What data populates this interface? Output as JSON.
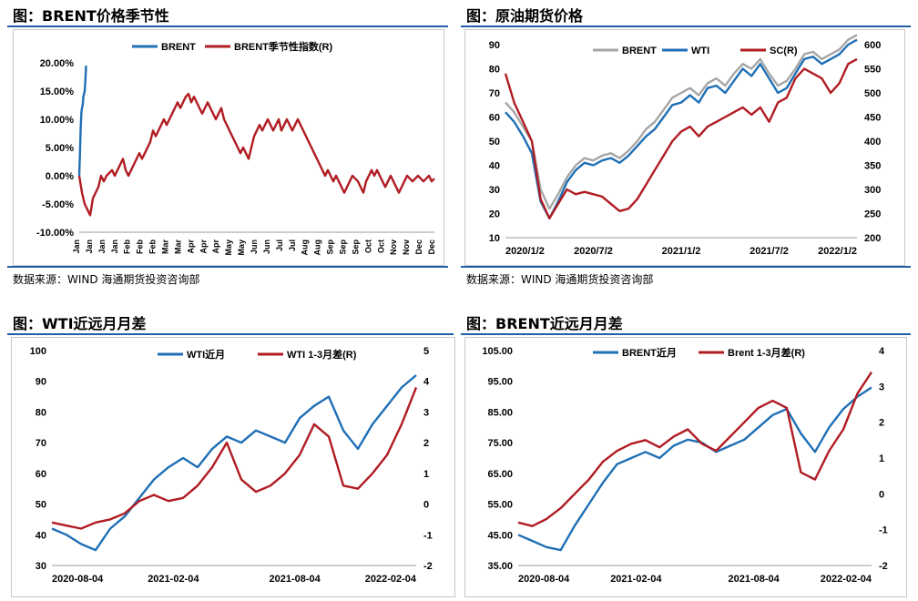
{
  "panels": [
    {
      "title": "图：BRENT价格季节性",
      "source": "数据来源：WIND   海通期货投资咨询部"
    },
    {
      "title": "图：原油期货价格",
      "source": "数据来源：WIND   海通期货投资咨询部"
    },
    {
      "title": "图：WTI近远月月差",
      "source": ""
    },
    {
      "title": "图：BRENT近远月月差",
      "source": ""
    }
  ],
  "colors": {
    "blue": "#1f6fb5",
    "red": "#b01c22",
    "gray": "#a6a6a6",
    "rule": "#1f5fa6"
  },
  "chart_data": [
    {
      "type": "line",
      "title": "",
      "x_tick_labels": [
        "Jan",
        "Jan",
        "Jan",
        "Jan",
        "Feb",
        "Feb",
        "Feb",
        "Mar",
        "Mar",
        "Apr",
        "Apr",
        "Apr",
        "May",
        "May",
        "Jun",
        "Jun",
        "Jul",
        "Jul",
        "Aug",
        "Aug",
        "Sep",
        "Sep",
        "Sep",
        "Oct",
        "Oct",
        "Nov",
        "Nov",
        "Dec",
        "Dec"
      ],
      "y_tick_labels": [
        "20.00%",
        "15.00%",
        "10.00%",
        "5.00%",
        "0.00%",
        "-5.00%",
        "-10.00%"
      ],
      "ylim": [
        -10,
        20
      ],
      "legend_position": "top",
      "series": [
        {
          "name": "BRENT",
          "color": "#1f6fb5",
          "x": [
            0,
            0.5,
            1,
            1.5,
            2,
            2.5,
            3,
            3.5,
            4,
            4.5,
            5
          ],
          "y": [
            0,
            4,
            8,
            11,
            12,
            12.5,
            14,
            14.5,
            15,
            17,
            19.5
          ]
        },
        {
          "name": "BRENT季节性指数(R)",
          "color": "#b01c22",
          "x": [
            0,
            2,
            4,
            6,
            8,
            10,
            12,
            14,
            16,
            18,
            20,
            22,
            24,
            26,
            28,
            30,
            32,
            34,
            36,
            38,
            40,
            42,
            44,
            46,
            48,
            50,
            52,
            54,
            56,
            58,
            60,
            62,
            64,
            66,
            68,
            70,
            72,
            74,
            76,
            78,
            80,
            82,
            84,
            86,
            88,
            90,
            92,
            94,
            96,
            98,
            100,
            102,
            104,
            106,
            108,
            110,
            112,
            114,
            116,
            118,
            120,
            122,
            124,
            126,
            128,
            130,
            132,
            134,
            136,
            138,
            140,
            142,
            144,
            146,
            148,
            150,
            152,
            154,
            156,
            158,
            160,
            162,
            164,
            166,
            168,
            170,
            172,
            174,
            176,
            178,
            180,
            182,
            184,
            186,
            188,
            190,
            192,
            194,
            196,
            198,
            200,
            202,
            204,
            206,
            208,
            210,
            212,
            214,
            216,
            218,
            220,
            222,
            224,
            226,
            228,
            230,
            232,
            234,
            236,
            238,
            240,
            242,
            244,
            246,
            248,
            250,
            252,
            254,
            256,
            258,
            260
          ],
          "y": [
            0,
            -3,
            -5,
            -6,
            -7,
            -4,
            -3,
            -2,
            0,
            -1,
            0,
            0.5,
            1,
            0,
            1,
            2,
            3,
            1,
            0,
            1,
            2,
            3,
            4,
            3,
            4,
            5,
            6,
            8,
            7,
            8,
            9,
            10,
            9,
            10,
            11,
            12,
            13,
            12,
            13,
            14,
            14.5,
            13,
            14,
            13,
            12,
            11,
            12,
            13,
            12,
            11,
            10,
            11,
            12,
            10,
            9,
            8,
            7,
            6,
            5,
            4,
            5,
            4,
            3,
            5,
            7,
            8,
            9,
            8,
            9,
            10,
            9,
            8,
            9,
            10,
            8,
            9,
            10,
            9,
            8,
            9,
            10,
            9,
            8,
            7,
            6,
            5,
            4,
            3,
            2,
            1,
            0,
            1,
            0,
            -1,
            0,
            -1,
            -2,
            -3,
            -2,
            -1,
            0,
            -0.5,
            -1,
            -2,
            -3,
            -1,
            0,
            1,
            0,
            1,
            0,
            -1,
            -2,
            -1,
            0,
            -1,
            -2,
            -3,
            -2,
            -1,
            0,
            -0.5,
            -1,
            -0.5,
            0,
            -0.5,
            -1,
            -0.5,
            0,
            -1,
            -0.5
          ]
        }
      ]
    },
    {
      "type": "line",
      "title": "",
      "x_tick_labels": [
        "2020/1/2",
        "2020/7/2",
        "2021/1/2",
        "2021/7/2",
        "2022/1/2"
      ],
      "y_tick_labels_left": [
        "90",
        "80",
        "70",
        "60",
        "50",
        "40",
        "30",
        "20",
        "10"
      ],
      "y_tick_labels_right": [
        "600",
        "550",
        "500",
        "450",
        "400",
        "350",
        "300",
        "250",
        "200"
      ],
      "ylim": [
        10,
        90
      ],
      "ylim_right": [
        200,
        600
      ],
      "legend_position": "top",
      "series": [
        {
          "name": "BRENT",
          "color": "#a6a6a6",
          "x": [
            0,
            3,
            6,
            9,
            12,
            15,
            18,
            21,
            24,
            27,
            30,
            33,
            36,
            39,
            42,
            45,
            48,
            51,
            54,
            57,
            60,
            63,
            66,
            69,
            72,
            75,
            78,
            81,
            84,
            87,
            90,
            93,
            96,
            99,
            102,
            105,
            108,
            111,
            114,
            117,
            120
          ],
          "y": [
            66,
            62,
            56,
            50,
            30,
            22,
            28,
            35,
            40,
            43,
            42,
            44,
            45,
            43,
            46,
            50,
            55,
            58,
            63,
            68,
            70,
            72,
            69,
            74,
            76,
            73,
            78,
            82,
            80,
            84,
            78,
            73,
            75,
            80,
            86,
            87,
            84,
            86,
            88,
            92,
            94
          ]
        },
        {
          "name": "WTI",
          "color": "#1f6fb5",
          "x": [
            0,
            3,
            6,
            9,
            12,
            15,
            18,
            21,
            24,
            27,
            30,
            33,
            36,
            39,
            42,
            45,
            48,
            51,
            54,
            57,
            60,
            63,
            66,
            69,
            72,
            75,
            78,
            81,
            84,
            87,
            90,
            93,
            96,
            99,
            102,
            105,
            108,
            111,
            114,
            117,
            120
          ],
          "y": [
            62,
            58,
            52,
            45,
            25,
            18,
            25,
            33,
            38,
            41,
            40,
            42,
            43,
            41,
            44,
            48,
            52,
            55,
            60,
            65,
            66,
            69,
            66,
            72,
            73,
            70,
            75,
            80,
            77,
            82,
            76,
            70,
            72,
            78,
            84,
            85,
            82,
            84,
            86,
            90,
            92
          ]
        },
        {
          "name": "SC(R)",
          "color": "#b01c22",
          "x": [
            0,
            3,
            6,
            9,
            12,
            15,
            18,
            21,
            24,
            27,
            30,
            33,
            36,
            39,
            42,
            45,
            48,
            51,
            54,
            57,
            60,
            63,
            66,
            69,
            72,
            75,
            78,
            81,
            84,
            87,
            90,
            93,
            96,
            99,
            102,
            105,
            108,
            111,
            114,
            117,
            120
          ],
          "y": [
            540,
            480,
            440,
            400,
            280,
            240,
            270,
            300,
            290,
            295,
            290,
            285,
            270,
            255,
            260,
            280,
            310,
            340,
            370,
            400,
            420,
            430,
            410,
            430,
            440,
            450,
            460,
            470,
            455,
            470,
            440,
            480,
            490,
            530,
            550,
            540,
            530,
            500,
            520,
            560,
            570
          ]
        }
      ]
    },
    {
      "type": "line",
      "title": "",
      "x_tick_labels": [
        "2020-08-04",
        "2021-02-04",
        "2021-08-04",
        "2022-02-04"
      ],
      "y_tick_labels_left": [
        "100",
        "90",
        "80",
        "70",
        "60",
        "50",
        "40",
        "30"
      ],
      "y_tick_labels_right": [
        "5",
        "4",
        "3",
        "2",
        "1",
        "0",
        "-1",
        "-2"
      ],
      "ylim": [
        30,
        100
      ],
      "ylim_right": [
        -2,
        5
      ],
      "legend_position": "top",
      "series": [
        {
          "name": "WTI近月",
          "color": "#1f6fb5",
          "x": [
            0,
            4,
            8,
            12,
            16,
            20,
            24,
            28,
            32,
            36,
            40,
            44,
            48,
            52,
            56,
            60,
            64,
            68,
            72,
            76,
            80,
            84,
            88,
            92,
            96,
            100
          ],
          "y": [
            42,
            40,
            37,
            35,
            42,
            46,
            52,
            58,
            62,
            65,
            62,
            68,
            72,
            70,
            74,
            72,
            70,
            78,
            82,
            85,
            74,
            68,
            76,
            82,
            88,
            92
          ]
        },
        {
          "name": "WTI 1-3月差(R)",
          "color": "#b01c22",
          "x": [
            0,
            4,
            8,
            12,
            16,
            20,
            24,
            28,
            32,
            36,
            40,
            44,
            48,
            52,
            56,
            60,
            64,
            68,
            72,
            76,
            80,
            84,
            88,
            92,
            96,
            100
          ],
          "y": [
            -0.6,
            -0.7,
            -0.8,
            -0.6,
            -0.5,
            -0.3,
            0.1,
            0.3,
            0.1,
            0.2,
            0.6,
            1.2,
            2.0,
            0.8,
            0.4,
            0.6,
            1.0,
            1.6,
            2.6,
            2.2,
            0.6,
            0.5,
            1.0,
            1.6,
            2.6,
            3.8
          ]
        }
      ]
    },
    {
      "type": "line",
      "title": "",
      "x_tick_labels": [
        "2020-08-04",
        "2021-02-04",
        "2021-08-04",
        "2022-02-04"
      ],
      "y_tick_labels_left": [
        "105.00",
        "95.00",
        "85.00",
        "75.00",
        "65.00",
        "55.00",
        "45.00",
        "35.00"
      ],
      "y_tick_labels_right": [
        "4",
        "3",
        "2",
        "1",
        "0",
        "-1",
        "-2"
      ],
      "ylim": [
        35,
        105
      ],
      "ylim_right": [
        -2,
        4
      ],
      "legend_position": "top",
      "series": [
        {
          "name": "BRENT近月",
          "color": "#1f6fb5",
          "x": [
            0,
            4,
            8,
            12,
            16,
            20,
            24,
            28,
            32,
            36,
            40,
            44,
            48,
            52,
            56,
            60,
            64,
            68,
            72,
            76,
            80,
            84,
            88,
            92,
            96,
            100
          ],
          "y": [
            45,
            43,
            41,
            40,
            48,
            55,
            62,
            68,
            70,
            72,
            70,
            74,
            76,
            75,
            72,
            74,
            76,
            80,
            84,
            86,
            78,
            72,
            80,
            86,
            90,
            93
          ]
        },
        {
          "name": "Brent 1-3月差(R)",
          "color": "#b01c22",
          "x": [
            0,
            4,
            8,
            12,
            16,
            20,
            24,
            28,
            32,
            36,
            40,
            44,
            48,
            52,
            56,
            60,
            64,
            68,
            72,
            76,
            80,
            84,
            88,
            92,
            96,
            100
          ],
          "y": [
            -0.8,
            -0.9,
            -0.7,
            -0.4,
            0.0,
            0.4,
            0.9,
            1.2,
            1.4,
            1.5,
            1.3,
            1.6,
            1.8,
            1.4,
            1.2,
            1.6,
            2.0,
            2.4,
            2.6,
            2.4,
            0.6,
            0.4,
            1.2,
            1.8,
            2.8,
            3.4
          ]
        }
      ]
    }
  ]
}
